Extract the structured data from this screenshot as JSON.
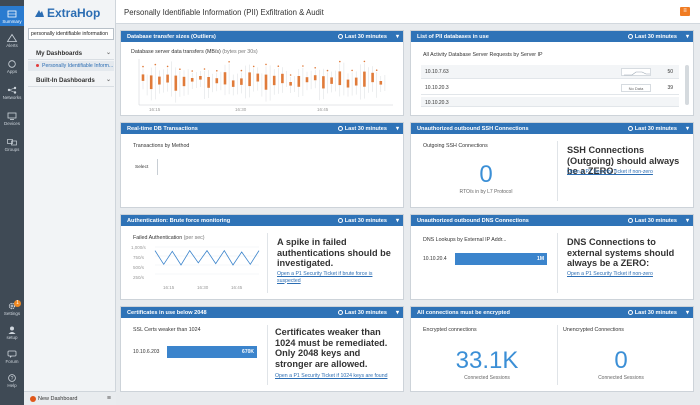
{
  "rail": {
    "items": [
      {
        "label": "Summary",
        "icon": "summary-icon"
      },
      {
        "label": "Alerts",
        "icon": "alerts-icon"
      },
      {
        "label": "Apps",
        "icon": "apps-icon"
      },
      {
        "label": "Networks",
        "icon": "networks-icon"
      },
      {
        "label": "Devices",
        "icon": "devices-icon"
      },
      {
        "label": "Groups",
        "icon": "groups-icon"
      },
      {
        "label": "Settings",
        "icon": "gear-icon"
      },
      {
        "label": "setup",
        "icon": "user-icon"
      },
      {
        "label": "Forum",
        "icon": "forum-icon"
      },
      {
        "label": "Help",
        "icon": "help-icon"
      }
    ],
    "settings_badge": "1"
  },
  "sidebar": {
    "logo": "ExtraHop",
    "search_value": "personally identifiable information",
    "my_dashboards": "My Dashboards",
    "active_dashboard": "Personally Identifiable Inform...",
    "builtin_dashboards": "Built-In Dashboards",
    "new_dashboard": "New Dashboard"
  },
  "header": {
    "title": "Personally Identifiable Information (PII) Exfiltration & Audit"
  },
  "time_range": "Last 30 minutes",
  "widgets": {
    "db_transfer": {
      "title": "Database transfer sizes (Outliers)",
      "chart_title": "Database server data transfers (MB/s)",
      "chart_unit": "(bytes per 30s)"
    },
    "pii_list": {
      "title": "List of PII databases in use",
      "subtitle": "All Activity Database Server Requests by Server IP",
      "rows": [
        {
          "ip": "10.10.7.63",
          "spark": "",
          "value": "50"
        },
        {
          "ip": "10.10.20.3",
          "spark": "No Data",
          "value": "39"
        },
        {
          "ip": "10.10.20.3",
          "spark": "",
          "value": ""
        }
      ]
    },
    "db_tx": {
      "title": "Real-time DB Transactions",
      "subtitle": "Transactions by Method",
      "select_label": "Select"
    },
    "ssh": {
      "title": "Unauthorized outbound SSH Connections",
      "subtitle": "Outgoing SSH Connections",
      "value": "0",
      "caption": "RTO/s in by L7 Protocol",
      "message": "SSH Connections (Outgoing) should always be a ZERO:",
      "link": "Open a P1 Security Ticket if non-zero"
    },
    "auth": {
      "title": "Authentication: Brute force monitoring",
      "subtitle": "Failed Authentication",
      "unit": "(per sec)",
      "message": "A spike in failed authentications should be investigated.",
      "link": "Open a P1 Security Ticket if brute force is suspected",
      "x_ticks": [
        "16:15",
        "16:30",
        "16:45"
      ]
    },
    "dns": {
      "title": "Unauthorized outbound DNS Connections",
      "subtitle": "DNS Lookups by External IP Addr...",
      "row_label": "10.10.20.4",
      "bar_value": "1M",
      "message": "DNS Connections to external systems should always be a ZERO:",
      "link": "Open a P1 Security Ticket if non-zero"
    },
    "certs": {
      "title": "Certificates in use below 2048",
      "subtitle": "SSL Certs weaker than 1024",
      "row_label": "10.10.6.203",
      "bar_value": "670K",
      "message": "Certificates weaker than 1024 must be remediated. Only 2048 keys and stronger are allowed.",
      "link": "Open a P1 Security Ticket if 1024 keys are found"
    },
    "encrypted": {
      "title": "All connections must be encrypted",
      "left_label": "Encrypted connections",
      "left_value": "33.1K",
      "left_caption": "Connected Sessions",
      "right_label": "Unencrypted Connections",
      "right_value": "0",
      "right_caption": "Connected Sessions"
    }
  },
  "chart_data": [
    {
      "type": "scatter",
      "title": "Database server data transfers (MB/s)",
      "x": [
        "16:15",
        "16:30",
        "16:45"
      ],
      "ylabel": "",
      "note": "box-plot outliers per 30s interval"
    },
    {
      "type": "line",
      "title": "Failed Authentication",
      "ylabel": "(per sec)",
      "y_ticks": [
        "1,000/s",
        "750/s",
        "500/s",
        "250/s"
      ],
      "x_ticks": [
        "16:15",
        "16:30",
        "16:45"
      ],
      "values": [
        900,
        520,
        880,
        500,
        900,
        560,
        900,
        540,
        900,
        500,
        860,
        520,
        900
      ]
    },
    {
      "type": "bar",
      "title": "DNS Lookups by External IP Addr...",
      "categories": [
        "10.10.20.4"
      ],
      "values": [
        1000000
      ]
    },
    {
      "type": "bar",
      "title": "SSL Certs weaker than 1024",
      "categories": [
        "10.10.6.203"
      ],
      "values": [
        670000
      ]
    }
  ]
}
